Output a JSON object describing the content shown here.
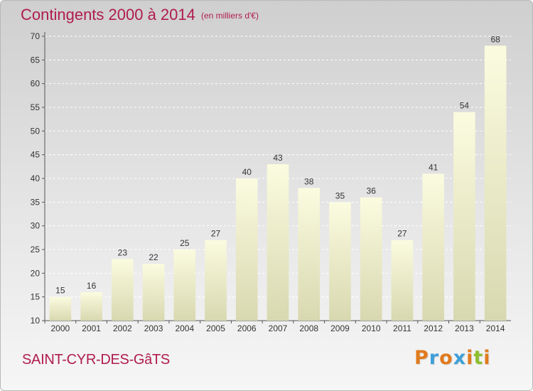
{
  "title": "Contingents 2000 à 2014",
  "subtitle": "(en milliers d'€)",
  "commune": "SAINT-CYR-DES-GâTS",
  "logo": {
    "text": "Proxiti",
    "letter_colors": [
      "#e07b1e",
      "#3f9fd8",
      "#e07b1e",
      "#3f9fd8",
      "#e07b1e",
      "#8dbf2e",
      "#e07b1e"
    ]
  },
  "colors": {
    "title": "#b01c4e",
    "bar_top": "#fbfbe0",
    "bar_bottom": "#d8d8b0"
  },
  "chart_data": {
    "type": "bar",
    "title": "Contingents 2000 à 2014",
    "subtitle": "(en milliers d'€)",
    "categories": [
      "2000",
      "2001",
      "2002",
      "2003",
      "2004",
      "2005",
      "2006",
      "2007",
      "2008",
      "2009",
      "2010",
      "2011",
      "2012",
      "2013",
      "2014"
    ],
    "values": [
      15,
      16,
      23,
      22,
      25,
      27,
      40,
      43,
      38,
      35,
      36,
      27,
      41,
      54,
      68
    ],
    "ylim": [
      10,
      70
    ],
    "yticks": [
      10,
      15,
      20,
      25,
      30,
      35,
      40,
      45,
      50,
      55,
      60,
      65,
      70
    ],
    "grid": true,
    "data_labels": true
  }
}
